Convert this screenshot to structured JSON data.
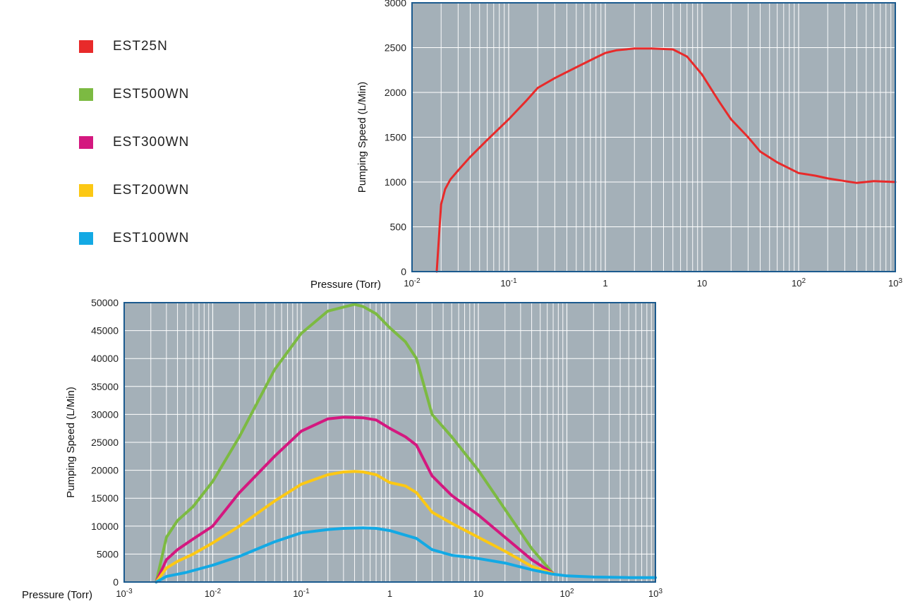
{
  "legend": [
    {
      "label": "EST25N",
      "color": "#e82a2a"
    },
    {
      "label": "EST500WN",
      "color": "#7cba42"
    },
    {
      "label": "EST300WN",
      "color": "#d4187f"
    },
    {
      "label": "EST200WN",
      "color": "#fcc814"
    },
    {
      "label": "EST100WN",
      "color": "#13a9e4"
    }
  ],
  "colors": {
    "plot_background": "#a4b0b8",
    "grid": "#ffffff",
    "frame": "#1b5a8e"
  },
  "chart_data": [
    {
      "type": "line",
      "xlabel": "Pressure (Torr)",
      "ylabel": "Pumping Speed (L/Min)",
      "x_scale": "log",
      "xlim": [
        0.01,
        1000
      ],
      "ylim": [
        0,
        3000
      ],
      "x_ticks": [
        {
          "value": 0.01,
          "base": "10",
          "exp": "-2"
        },
        {
          "value": 0.1,
          "base": "10",
          "exp": "-1"
        },
        {
          "value": 1,
          "base": "1",
          "exp": ""
        },
        {
          "value": 10,
          "base": "10",
          "exp": ""
        },
        {
          "value": 100,
          "base": "10",
          "exp": "2"
        },
        {
          "value": 1000,
          "base": "10",
          "exp": "3"
        }
      ],
      "y_ticks": [
        {
          "value": 0,
          "label": "0"
        },
        {
          "value": 500,
          "label": "500"
        },
        {
          "value": 1000,
          "label": "1000"
        },
        {
          "value": 1500,
          "label": "1500"
        },
        {
          "value": 2000,
          "label": "2000"
        },
        {
          "value": 2500,
          "label": "2500"
        },
        {
          "value": 3000,
          "label": "3000"
        }
      ],
      "grid": true,
      "series": [
        {
          "name": "EST25N",
          "color": "#e82a2a",
          "x": [
            0.018,
            0.02,
            0.022,
            0.025,
            0.03,
            0.04,
            0.06,
            0.1,
            0.15,
            0.2,
            0.3,
            0.5,
            0.8,
            1,
            1.3,
            2,
            3,
            5,
            7,
            10,
            15,
            20,
            30,
            40,
            60,
            100,
            150,
            200,
            300,
            400,
            600,
            1000
          ],
          "y": [
            0,
            750,
            920,
            1030,
            1130,
            1280,
            1470,
            1700,
            1900,
            2050,
            2160,
            2280,
            2390,
            2440,
            2470,
            2490,
            2490,
            2480,
            2400,
            2200,
            1900,
            1700,
            1500,
            1340,
            1220,
            1100,
            1070,
            1040,
            1010,
            990,
            1010,
            1000
          ]
        }
      ]
    },
    {
      "type": "line",
      "xlabel": "Pressure (Torr)",
      "ylabel": "Pumping Speed (L/Min)",
      "x_scale": "log",
      "xlim": [
        0.001,
        1000
      ],
      "ylim": [
        0,
        50000
      ],
      "x_ticks": [
        {
          "value": 0.001,
          "base": "10",
          "exp": "-3"
        },
        {
          "value": 0.01,
          "base": "10",
          "exp": "-2"
        },
        {
          "value": 0.1,
          "base": "10",
          "exp": "-1"
        },
        {
          "value": 1,
          "base": "1",
          "exp": ""
        },
        {
          "value": 10,
          "base": "10",
          "exp": ""
        },
        {
          "value": 100,
          "base": "10",
          "exp": "2"
        },
        {
          "value": 1000,
          "base": "10",
          "exp": "3"
        }
      ],
      "y_ticks": [
        {
          "value": 0,
          "label": "0"
        },
        {
          "value": 5000,
          "label": "5000"
        },
        {
          "value": 10000,
          "label": "10000"
        },
        {
          "value": 15000,
          "label": "15000"
        },
        {
          "value": 20000,
          "label": "20000"
        },
        {
          "value": 25000,
          "label": "25000"
        },
        {
          "value": 30000,
          "label": "30000"
        },
        {
          "value": 35000,
          "label": "35000"
        },
        {
          "value": 40000,
          "label": "40000"
        },
        {
          "value": 45000,
          "label": "45000"
        },
        {
          "value": 50000,
          "label": "50000"
        }
      ],
      "grid": true,
      "series": [
        {
          "name": "EST500WN",
          "color": "#7cba42",
          "x": [
            0.0023,
            0.003,
            0.004,
            0.006,
            0.01,
            0.02,
            0.05,
            0.1,
            0.2,
            0.3,
            0.4,
            0.5,
            0.7,
            1,
            1.5,
            2,
            3,
            5,
            10,
            20,
            40,
            70
          ],
          "y": [
            0,
            8000,
            11000,
            13500,
            18000,
            26000,
            38000,
            44500,
            48500,
            49200,
            49700,
            49300,
            48000,
            45500,
            43000,
            40000,
            30000,
            26000,
            20000,
            13000,
            6000,
            1500
          ]
        },
        {
          "name": "EST300WN",
          "color": "#d4187f",
          "x": [
            0.0023,
            0.003,
            0.004,
            0.006,
            0.01,
            0.02,
            0.05,
            0.1,
            0.2,
            0.3,
            0.5,
            0.7,
            1,
            1.5,
            2,
            3,
            5,
            10,
            20,
            40,
            70
          ],
          "y": [
            0,
            4000,
            5800,
            7700,
            10000,
            16000,
            22500,
            27000,
            29200,
            29500,
            29400,
            29000,
            27500,
            26000,
            24500,
            19000,
            15500,
            12000,
            8000,
            4000,
            1500
          ]
        },
        {
          "name": "EST200WN",
          "color": "#fcc814",
          "x": [
            0.0023,
            0.003,
            0.004,
            0.006,
            0.01,
            0.02,
            0.05,
            0.1,
            0.2,
            0.3,
            0.4,
            0.5,
            0.7,
            1,
            1.5,
            2,
            3,
            5,
            10,
            20,
            40,
            70
          ],
          "y": [
            0,
            2500,
            3700,
            5000,
            7000,
            10000,
            14500,
            17500,
            19200,
            19700,
            19800,
            19700,
            19200,
            17800,
            17200,
            16000,
            12500,
            10500,
            8000,
            5500,
            2800,
            1500
          ]
        },
        {
          "name": "EST100WN",
          "color": "#13a9e4",
          "x": [
            0.0023,
            0.003,
            0.005,
            0.01,
            0.02,
            0.05,
            0.1,
            0.2,
            0.3,
            0.5,
            0.7,
            1,
            2,
            3,
            5,
            10,
            20,
            40,
            70,
            100,
            200,
            500,
            1000
          ],
          "y": [
            0,
            1000,
            1700,
            3000,
            4600,
            7200,
            8800,
            9400,
            9600,
            9700,
            9600,
            9200,
            7800,
            5800,
            4800,
            4200,
            3400,
            2200,
            1400,
            1100,
            900,
            800,
            800
          ]
        }
      ]
    }
  ]
}
